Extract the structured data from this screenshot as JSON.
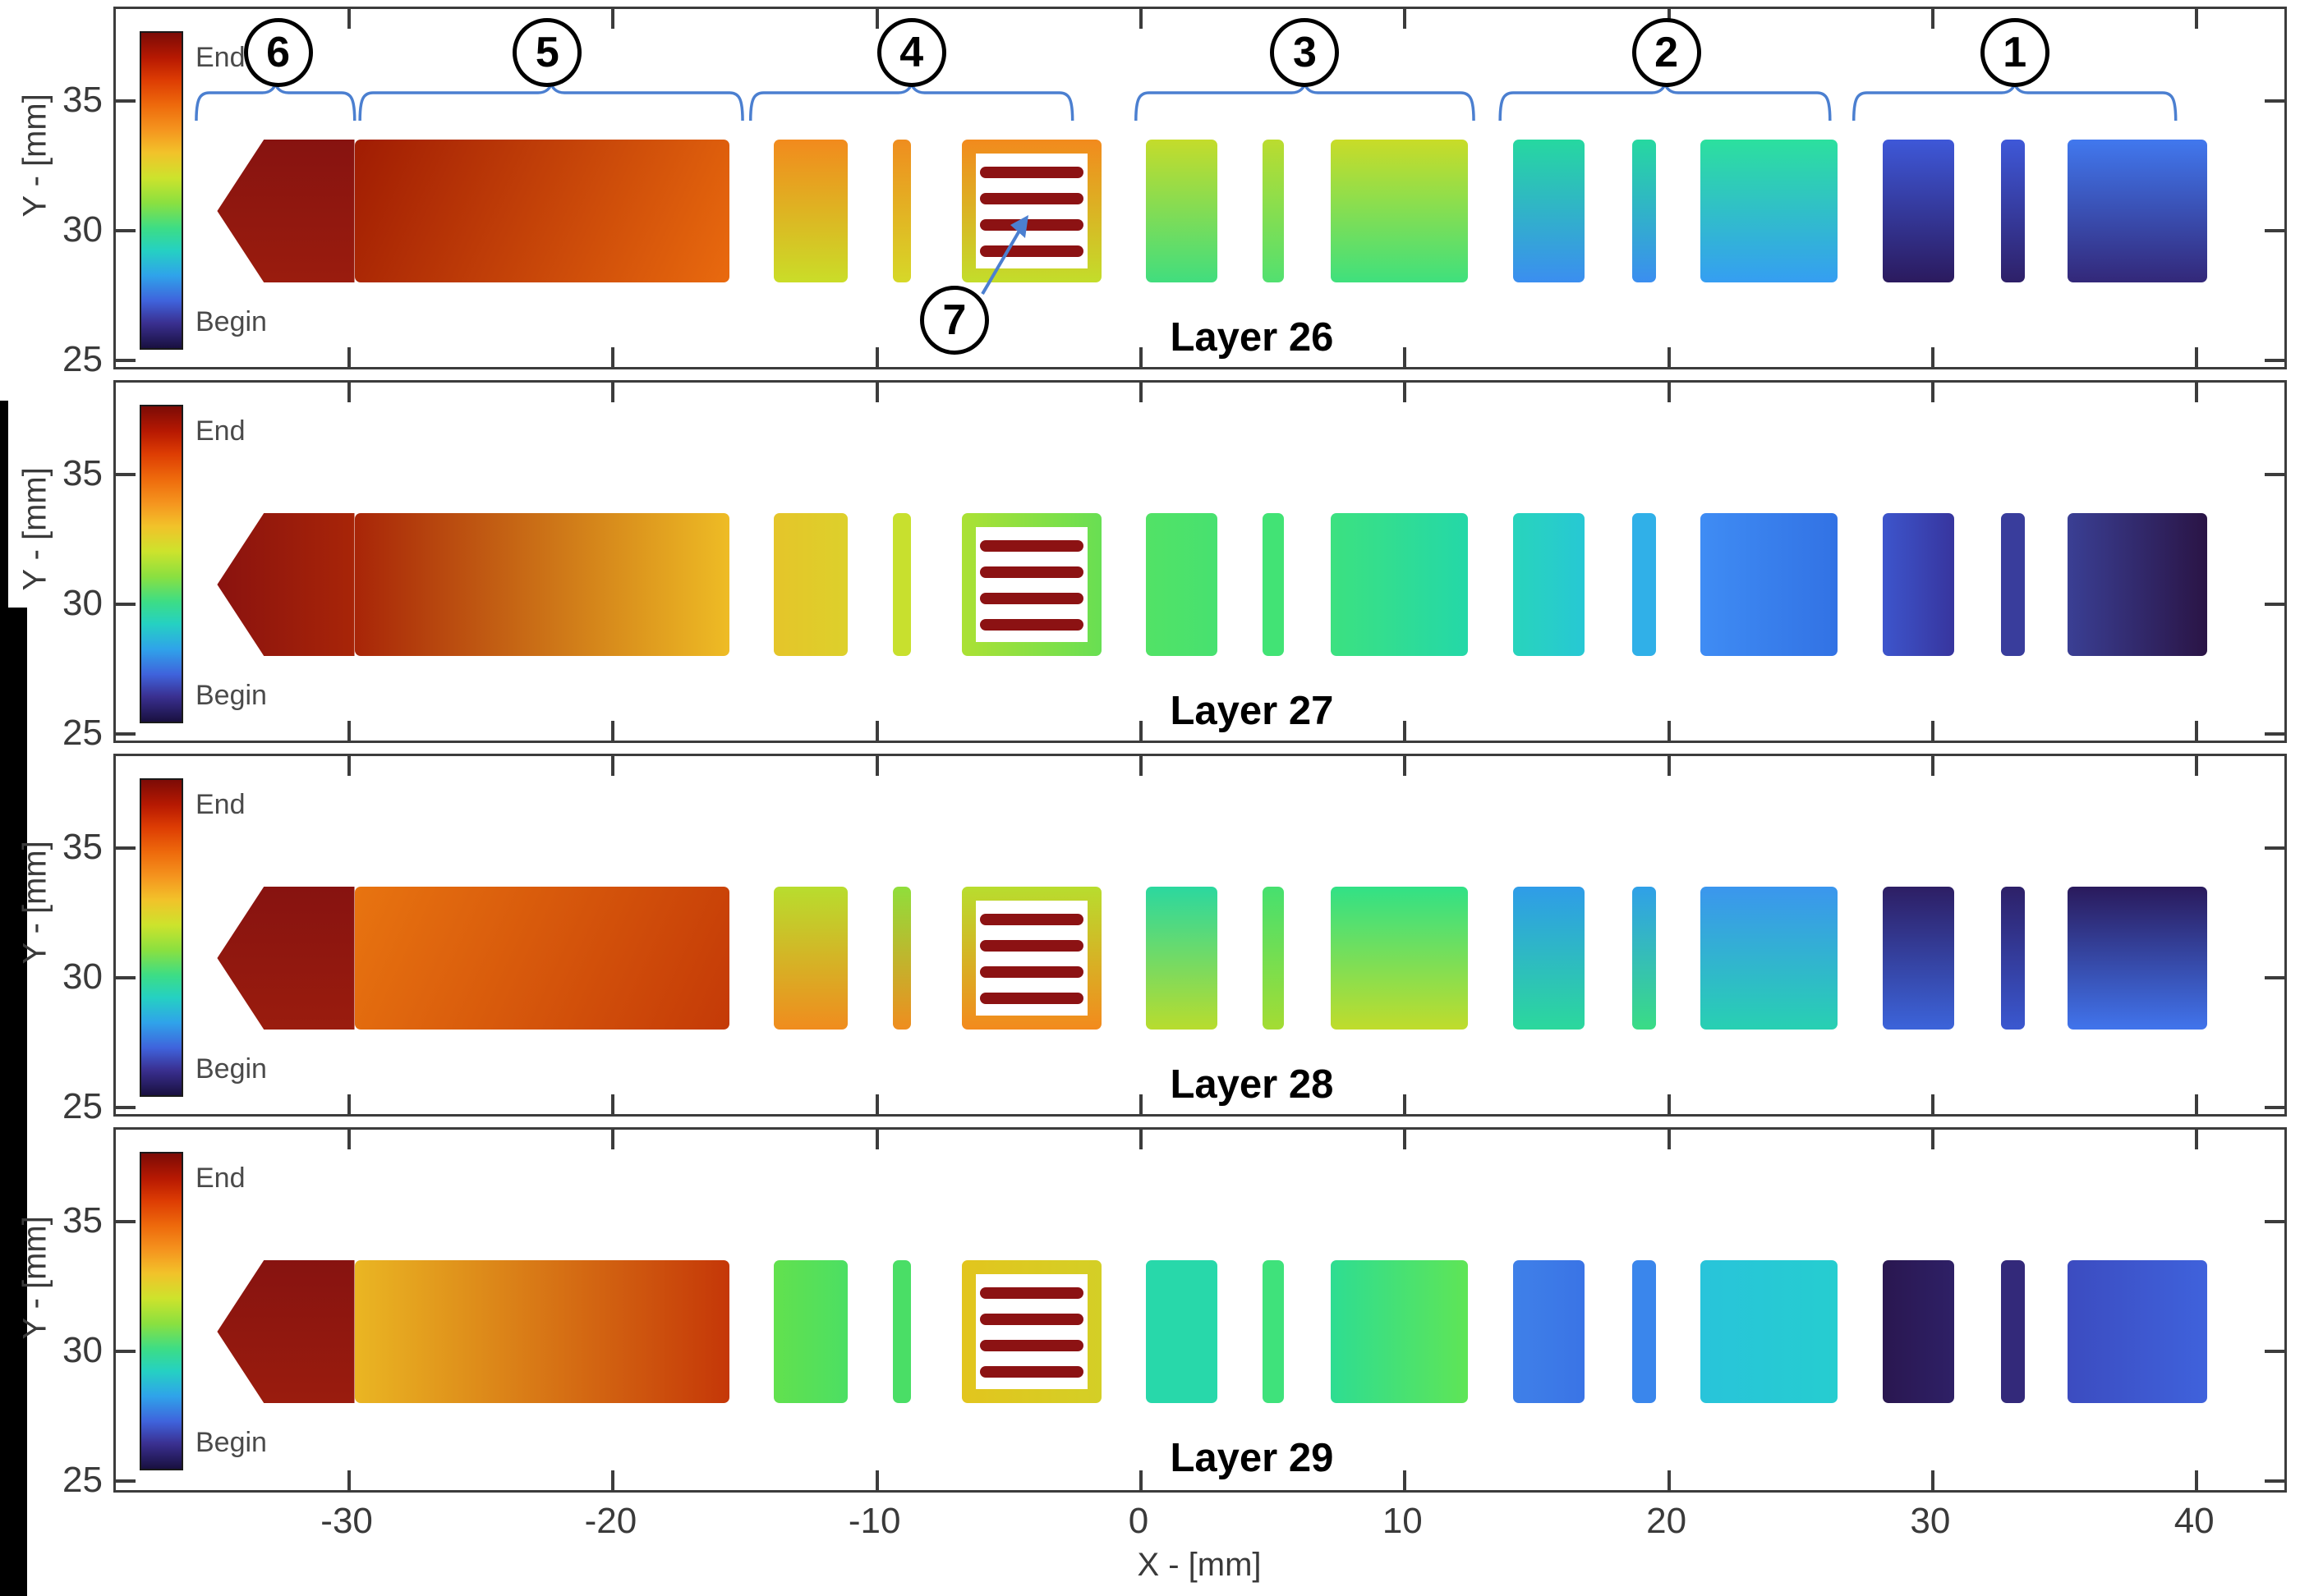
{
  "figure": {
    "x_axis_label": "X - [mm]",
    "y_axis_label": "Y - [mm]",
    "colorbar_top_label": "End",
    "colorbar_bottom_label": "Begin",
    "annotation_blue": "#4b7fd0",
    "axis_color": "#3c3c3c",
    "stripe_color": "#8c1213"
  },
  "chart_data": {
    "type": "area",
    "subtype": "toolpath-patch-plot, 4 stacked panels sharing one x axis",
    "panels": [
      "Layer 26",
      "Layer 27",
      "Layer 28",
      "Layer 29"
    ],
    "xlabel": "X - [mm]",
    "ylabel": "Y - [mm]",
    "xlim": [
      -38.8,
      43.4
    ],
    "ylim": [
      24.5,
      38.6
    ],
    "x_ticks": [
      -30,
      -20,
      -10,
      0,
      10,
      20,
      30,
      40
    ],
    "y_ticks": [
      35,
      30,
      25
    ],
    "grid": false,
    "colorbar": {
      "top": "End",
      "bottom": "Begin",
      "meaning": "print order: blue=Begin, red=End",
      "stops": [
        "#7c0b06",
        "#b71902",
        "#dd3c03",
        "#ee6a0c",
        "#f5961f",
        "#f2c22a",
        "#cde32c",
        "#8ae040",
        "#3cdd86",
        "#25d1c2",
        "#2fa3ea",
        "#3f63dc",
        "#3a3091",
        "#191040"
      ]
    },
    "shapes_y_mm": [
      28.0,
      33.5
    ],
    "geometry_shapes": [
      {
        "id": "arrow",
        "kind": "arrow",
        "x1": -35.0,
        "x2": -29.8
      },
      {
        "id": "body",
        "kind": "rect",
        "x1": -29.8,
        "x2": -15.6
      },
      {
        "id": "bar4a",
        "kind": "rect",
        "x1": -13.9,
        "x2": -11.1
      },
      {
        "id": "bar4b",
        "kind": "rect",
        "x1": -9.4,
        "x2": -8.7
      },
      {
        "id": "infill-frame",
        "kind": "frame",
        "x1": -6.8,
        "x2": -1.5
      },
      {
        "id": "bar3a",
        "kind": "rect",
        "x1": 0.2,
        "x2": 2.9
      },
      {
        "id": "bar3b",
        "kind": "rect",
        "x1": 4.6,
        "x2": 5.4
      },
      {
        "id": "bar3c",
        "kind": "rect",
        "x1": 7.2,
        "x2": 12.4
      },
      {
        "id": "bar2a",
        "kind": "rect",
        "x1": 14.1,
        "x2": 16.8
      },
      {
        "id": "bar2b",
        "kind": "rect",
        "x1": 18.6,
        "x2": 19.5
      },
      {
        "id": "bar2c",
        "kind": "rect",
        "x1": 21.2,
        "x2": 26.4
      },
      {
        "id": "bar1a",
        "kind": "rect",
        "x1": 28.1,
        "x2": 30.8
      },
      {
        "id": "bar1b",
        "kind": "rect",
        "x1": 32.6,
        "x2": 33.5
      },
      {
        "id": "bar1c",
        "kind": "rect",
        "x1": 35.1,
        "x2": 40.4
      }
    ],
    "layers": [
      {
        "label": "Layer 26",
        "fills": {
          "arrow": [
            "v",
            "#871310",
            "#9a1c0e"
          ],
          "body": [
            "d",
            "#a01c03",
            "#e96a0e"
          ],
          "bar4a": [
            "v",
            "#f28a1d",
            "#cadd28"
          ],
          "bar4b": [
            "v",
            "#ef8d1f",
            "#d6d828"
          ],
          "infill-frame": [
            "v",
            "#f28a1d",
            "#c3dd2b"
          ],
          "bar3a": [
            "v",
            "#c4dc2b",
            "#41dd7e"
          ],
          "bar3b": [
            "v",
            "#bbdc2f",
            "#52e070"
          ],
          "bar3c": [
            "v",
            "#c9dc28",
            "#3fe07d"
          ],
          "bar2a": [
            "v",
            "#26d8a0",
            "#3b8ef0"
          ],
          "bar2b": [
            "v",
            "#26d8a0",
            "#3b8ef0"
          ],
          "bar2c": [
            "v",
            "#2ce09e",
            "#359ef2"
          ],
          "bar1a": [
            "v",
            "#3e58d8",
            "#2b1a5e"
          ],
          "bar1b": [
            "v",
            "#3e58d8",
            "#2e2068"
          ],
          "bar1c": [
            "v",
            "#4178ee",
            "#332879"
          ]
        }
      },
      {
        "label": "Layer 27",
        "fills": {
          "arrow": [
            "h",
            "#8a120f",
            "#a82508"
          ],
          "body": [
            "h",
            "#a82508",
            "#eebc25"
          ],
          "bar4a": [
            "h",
            "#e5c52a",
            "#ddd02b"
          ],
          "bar4b": [
            "h",
            "#c8e02e",
            "#c8e02e"
          ],
          "infill-frame": [
            "h",
            "#abe134",
            "#68df53"
          ],
          "bar3a": [
            "h",
            "#52e266",
            "#47e170"
          ],
          "bar3b": [
            "h",
            "#42e375",
            "#42e375"
          ],
          "bar3c": [
            "h",
            "#3ce180",
            "#24d8a8"
          ],
          "bar2a": [
            "h",
            "#28d4bc",
            "#27c8d4"
          ],
          "bar2b": [
            "h",
            "#30b0e8",
            "#30b0e8"
          ],
          "bar2c": [
            "h",
            "#3f8cf4",
            "#3272e4"
          ],
          "bar1a": [
            "h",
            "#3d55cc",
            "#37359e"
          ],
          "bar1b": [
            "h",
            "#393d9c",
            "#393d9c"
          ],
          "bar1c": [
            "h",
            "#3a3f94",
            "#2a1445"
          ]
        }
      },
      {
        "label": "Layer 28",
        "fills": {
          "arrow": [
            "v",
            "#871310",
            "#9a1c0e"
          ],
          "body": [
            "d",
            "#e87410",
            "#c43a07"
          ],
          "bar4a": [
            "v",
            "#b8dd2e",
            "#f08c1e"
          ],
          "bar4b": [
            "v",
            "#90de3b",
            "#ef8d1f"
          ],
          "infill-frame": [
            "v",
            "#b8dd2e",
            "#f38a1d"
          ],
          "bar3a": [
            "v",
            "#2bd89f",
            "#b8dc2e"
          ],
          "bar3b": [
            "v",
            "#46e06f",
            "#a4dc33"
          ],
          "bar3c": [
            "v",
            "#31e186",
            "#c0dc2c"
          ],
          "bar2a": [
            "v",
            "#2f9ce8",
            "#2cd89c"
          ],
          "bar2b": [
            "v",
            "#30a0e8",
            "#3adc85"
          ],
          "bar2c": [
            "v",
            "#3b96ee",
            "#28d0b2"
          ],
          "bar1a": [
            "v",
            "#2d1e64",
            "#3c64da"
          ],
          "bar1b": [
            "v",
            "#2d2068",
            "#3a58d0"
          ],
          "bar1c": [
            "v",
            "#2a1a5c",
            "#4174ec"
          ]
        }
      },
      {
        "label": "Layer 29",
        "fills": {
          "arrow": [
            "v",
            "#871310",
            "#9a1c0e"
          ],
          "body": [
            "h",
            "#eab623",
            "#c53708"
          ],
          "bar4a": [
            "h",
            "#62e14e",
            "#4cdf63"
          ],
          "bar4b": [
            "h",
            "#4ade66",
            "#4ade66"
          ],
          "infill-frame": [
            "h",
            "#e2c51e",
            "#d4cf26"
          ],
          "bar3a": [
            "h",
            "#28d8aa",
            "#28d8aa"
          ],
          "bar3b": [
            "h",
            "#3fe27b",
            "#3fe27b"
          ],
          "bar3c": [
            "h",
            "#2edd92",
            "#5fe556"
          ],
          "bar2a": [
            "h",
            "#3f80e8",
            "#3a74e6"
          ],
          "bar2b": [
            "h",
            "#3a86ec",
            "#3a86ec"
          ],
          "bar2c": [
            "h",
            "#28c4da",
            "#26cdd0"
          ],
          "bar1a": [
            "h",
            "#2a1750",
            "#2e2066"
          ],
          "bar1b": [
            "h",
            "#33297a",
            "#33297a"
          ],
          "bar1c": [
            "h",
            "#3c4cc0",
            "#3f62dc"
          ]
        }
      }
    ],
    "annotations": {
      "circled_numbers": [
        {
          "n": "1",
          "x_mm": 33.2
        },
        {
          "n": "2",
          "x_mm": 20.0
        },
        {
          "n": "3",
          "x_mm": 6.3
        },
        {
          "n": "4",
          "x_mm": -8.6
        },
        {
          "n": "5",
          "x_mm": -22.4
        },
        {
          "n": "6",
          "x_mm": -32.6
        }
      ],
      "braces_mm": [
        {
          "n": "6",
          "x1": -35.7,
          "x2": -29.7
        },
        {
          "n": "5",
          "x1": -29.5,
          "x2": -15.0
        },
        {
          "n": "4",
          "x1": -14.7,
          "x2": -2.5
        },
        {
          "n": "3",
          "x1": -0.1,
          "x2": 12.7
        },
        {
          "n": "2",
          "x1": 13.7,
          "x2": 26.2
        },
        {
          "n": "1",
          "x1": 27.1,
          "x2": 39.3
        }
      ],
      "callout": {
        "n": "7",
        "points_to": "infill stripes inside frame"
      }
    }
  }
}
